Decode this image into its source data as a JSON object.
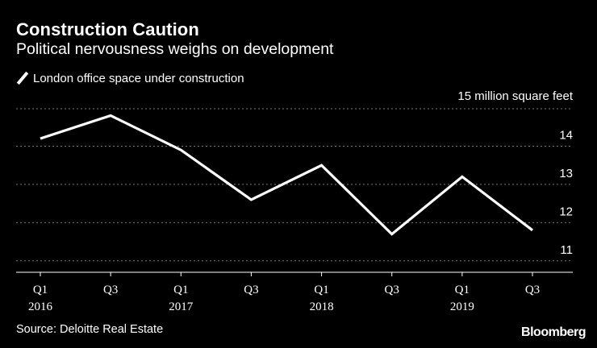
{
  "colors": {
    "background": "#000000",
    "foreground": "#ffffff",
    "grid": "#7a7a7a"
  },
  "header": {
    "title": "Construction Caution",
    "subtitle": "Political nervousness weighs on development"
  },
  "legend": {
    "label": "London office space under construction"
  },
  "footer": {
    "source": "Source: Deloitte Real Estate",
    "brand": "Bloomberg"
  },
  "chart_data": {
    "type": "line",
    "title": "Construction Caution",
    "subtitle": "Political nervousness weighs on development",
    "ylabel": "15 million square feet",
    "xlabel": "",
    "ylim": [
      10.7,
      15
    ],
    "yticks": [
      11,
      12,
      13,
      14
    ],
    "grid": true,
    "legend_position": "top-left",
    "categories": [
      {
        "q": "Q1",
        "year": "2016"
      },
      {
        "q": "Q3",
        "year": ""
      },
      {
        "q": "Q1",
        "year": "2017"
      },
      {
        "q": "Q3",
        "year": ""
      },
      {
        "q": "Q1",
        "year": "2018"
      },
      {
        "q": "Q3",
        "year": ""
      },
      {
        "q": "Q1",
        "year": "2019"
      },
      {
        "q": "Q3",
        "year": ""
      }
    ],
    "series": [
      {
        "name": "London office space under construction",
        "values": [
          14.2,
          14.8,
          13.9,
          12.6,
          13.5,
          11.7,
          13.2,
          11.8
        ]
      }
    ]
  }
}
